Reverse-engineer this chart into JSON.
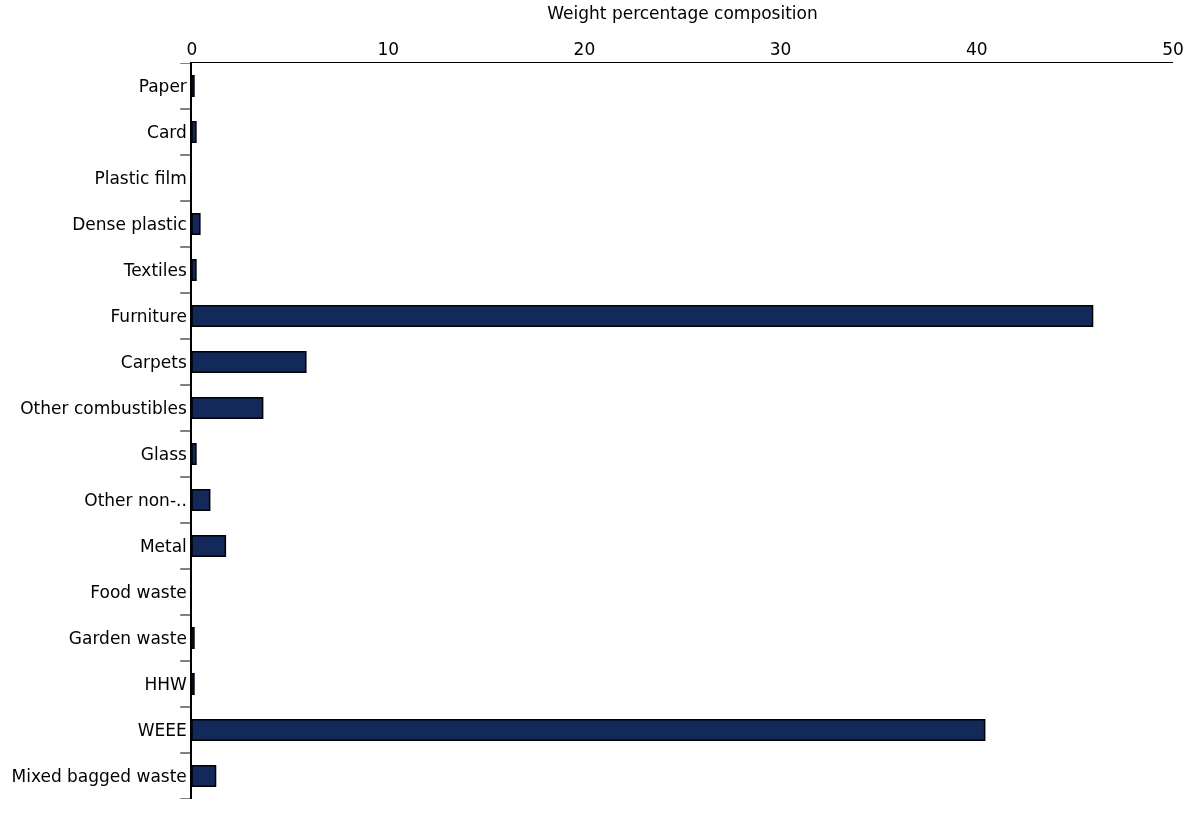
{
  "chart_data": {
    "type": "bar",
    "orientation": "horizontal",
    "xlabel": "Weight percentage composition",
    "categories": [
      "Paper",
      "Card",
      "Plastic film",
      "Dense plastic",
      "Textiles",
      "Furniture",
      "Carpets",
      "Other combustibles",
      "Glass",
      "Other non-..",
      "Metal",
      "Food waste",
      "Garden waste",
      "HHW",
      "WEEE",
      "Mixed bagged waste"
    ],
    "values": [
      0.1,
      0.2,
      0,
      0.4,
      0.2,
      45.9,
      5.8,
      3.6,
      0.2,
      0.9,
      1.7,
      0,
      0.1,
      0.1,
      40.4,
      1.2
    ],
    "color": "#13295a",
    "xlim": [
      0,
      50
    ],
    "xticks": [
      0,
      10,
      20,
      30,
      40,
      50
    ]
  }
}
